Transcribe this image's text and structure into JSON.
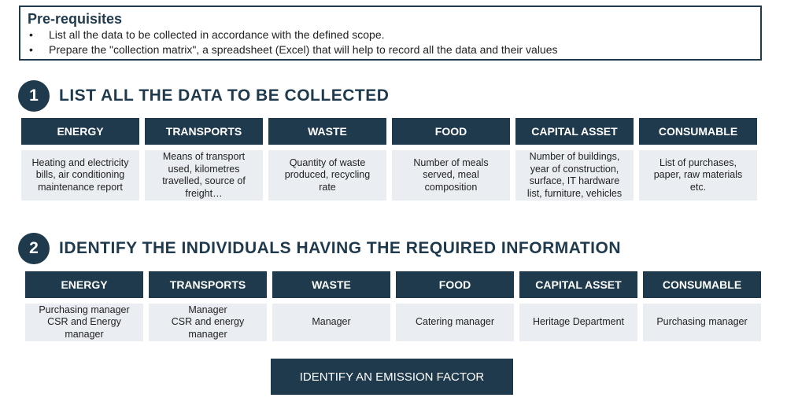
{
  "prerequisites": {
    "title": "Pre-requisites",
    "bullet_symbol": "•",
    "items": [
      "List all the data to be collected in accordance with the defined scope.",
      "Prepare the \"collection matrix\", a spreadsheet (Excel) that will help to record all the data and their values"
    ]
  },
  "step1": {
    "number": "1",
    "title": "LIST ALL THE DATA TO BE COLLECTED",
    "columns": [
      {
        "header": "ENERGY",
        "text": "Heating and electricity\nbills, air conditioning\nmaintenance report"
      },
      {
        "header": "TRANSPORTS",
        "text": "Means of transport\nused, kilometres\ntravelled, source of\nfreight…"
      },
      {
        "header": "WASTE",
        "text": "Quantity of waste\nproduced, recycling\nrate"
      },
      {
        "header": "FOOD",
        "text": "Number of meals\nserved, meal\ncomposition"
      },
      {
        "header": "CAPITAL ASSET",
        "text": "Number of buildings,\nyear of construction,\nsurface, IT hardware\nlist, furniture, vehicles"
      },
      {
        "header": "CONSUMABLE",
        "text": "List of purchases,\npaper, raw materials\netc."
      }
    ]
  },
  "step2": {
    "number": "2",
    "title": "IDENTIFY THE INDIVIDUALS HAVING THE REQUIRED INFORMATION",
    "columns": [
      {
        "header": "ENERGY",
        "text": "Purchasing manager\nCSR and Energy\nmanager"
      },
      {
        "header": "TRANSPORTS",
        "text": "Manager\nCSR and energy\nmanager"
      },
      {
        "header": "WASTE",
        "text": "Manager"
      },
      {
        "header": "FOOD",
        "text": "Catering manager"
      },
      {
        "header": "CAPITAL ASSET",
        "text": "Heritage Department"
      },
      {
        "header": "CONSUMABLE",
        "text": "Purchasing manager"
      }
    ]
  },
  "action_button": {
    "label": "IDENTIFY AN EMISSION FACTOR"
  },
  "colors": {
    "primary": "#1f3a4d",
    "cell_background": "#eaeef2",
    "text": "#222222"
  }
}
